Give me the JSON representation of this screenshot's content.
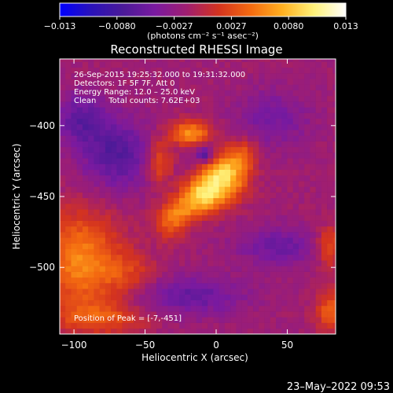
{
  "colorbar": {
    "min_label": "−0.013",
    "tick_labels": [
      "−0.013",
      "−0.0080",
      "−0.0027",
      "0.0027",
      "0.0080",
      "0.013"
    ],
    "units": "(photons cm⁻² s⁻¹ asec⁻²)",
    "colors": [
      "#0000ff",
      "#2a12b8",
      "#4b1a98",
      "#7a1aa0",
      "#a01e70",
      "#d4331f",
      "#f46a10",
      "#ffb020",
      "#fff27a",
      "#ffffff"
    ]
  },
  "title": "Reconstructed RHESSI Image",
  "annotations": {
    "line1": "26-Sep-2015 19:25:32.000 to 19:31:32.000",
    "line2": "Detectors: 1F 5F 7F, Att 0",
    "line3": "Energy Range: 12.0 – 25.0 keV",
    "line4": "Clean     Total counts: 7.62E+03",
    "peak": "Position of Peak = [-7,-451]"
  },
  "footer_timestamp": "23–May–2022 09:53",
  "chart_data": {
    "type": "heatmap",
    "title": "Reconstructed RHESSI Image",
    "xlabel": "Heliocentric X (arcsec)",
    "ylabel": "Heliocentric Y (arcsec)",
    "xlim": [
      -110,
      84
    ],
    "ylim": [
      -547,
      -353
    ],
    "x_ticks": [
      -100,
      -50,
      0,
      50
    ],
    "y_ticks": [
      -400,
      -450,
      -500
    ],
    "x_tick_labels": [
      "−100",
      "−50",
      "0",
      "50"
    ],
    "y_tick_labels": [
      "−400",
      "−450",
      "−500"
    ],
    "value_range": [
      -0.013,
      0.013
    ],
    "pixel_size_arcsec": 4,
    "peak_position": [
      -7,
      -451
    ]
  }
}
